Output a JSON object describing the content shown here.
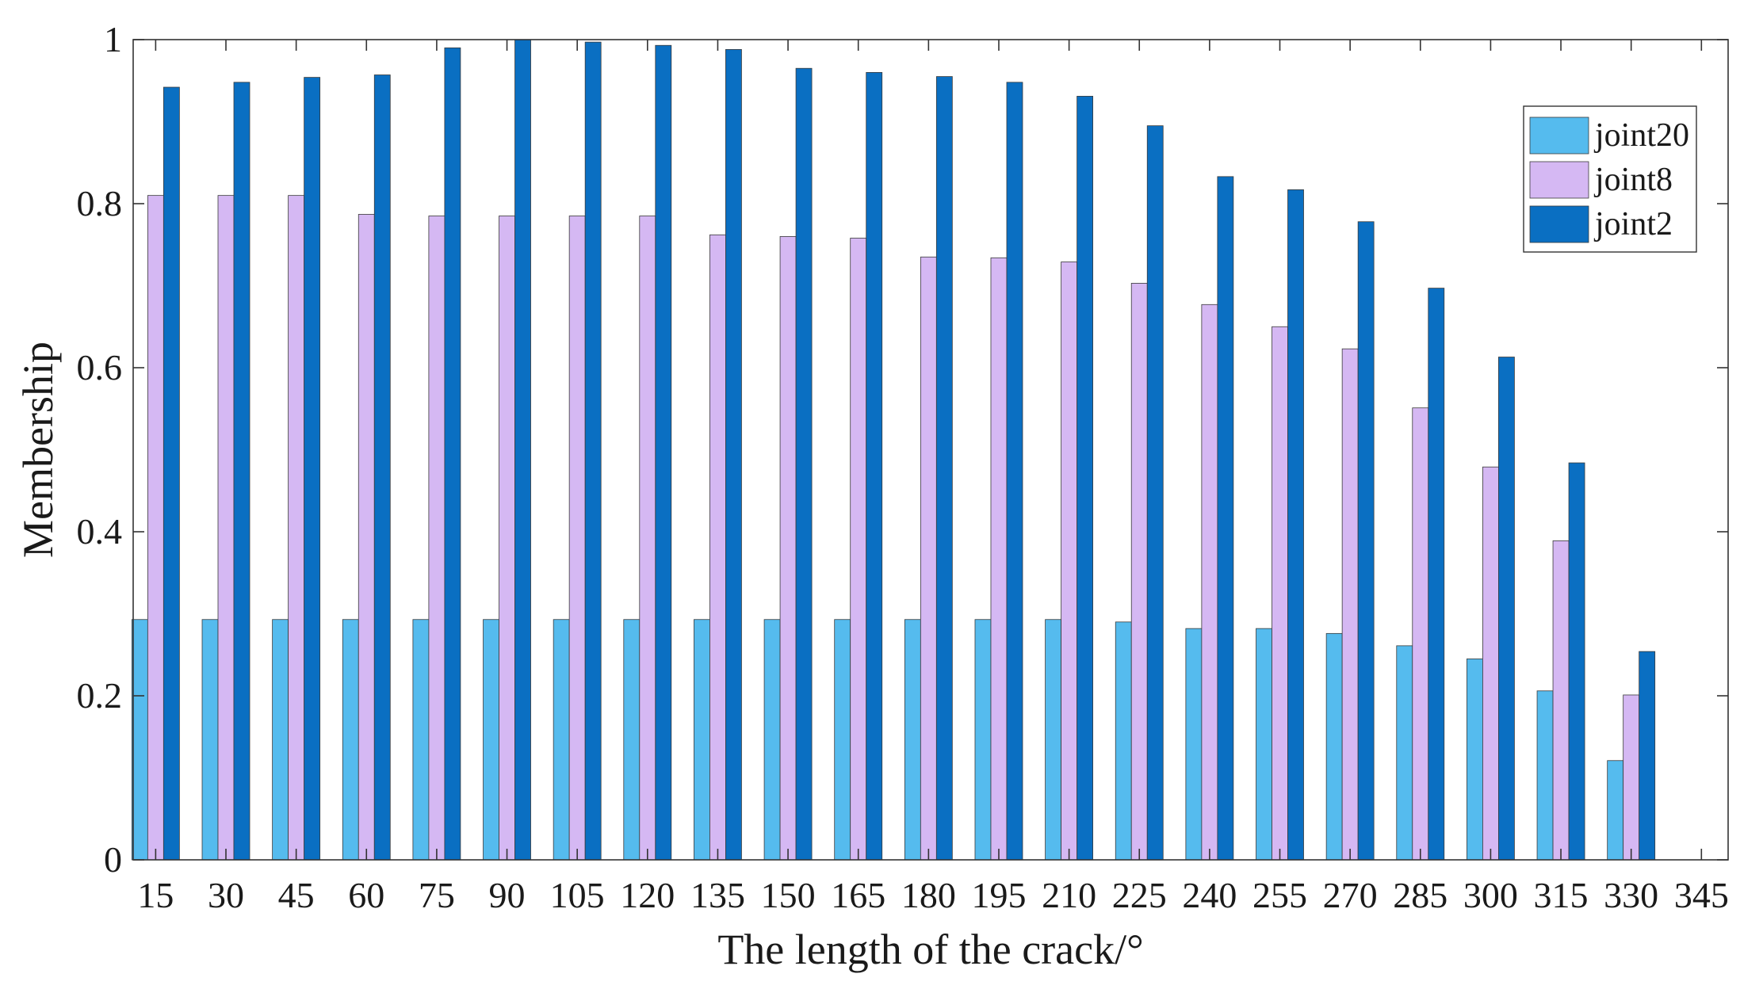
{
  "chart_data": {
    "type": "bar",
    "xlabel": "The length of the crack/°",
    "ylabel": "Membership",
    "ylim": [
      0,
      1
    ],
    "yticks": [
      "0",
      "0.2",
      "0.4",
      "0.6",
      "0.8",
      "1"
    ],
    "x_tick_labels": [
      "15",
      "30",
      "45",
      "60",
      "75",
      "90",
      "105",
      "120",
      "135",
      "150",
      "165",
      "180",
      "195",
      "210",
      "225",
      "240",
      "255",
      "270",
      "285",
      "300",
      "315",
      "330",
      "345"
    ],
    "categories": [
      "15",
      "30",
      "45",
      "60",
      "75",
      "90",
      "105",
      "120",
      "135",
      "150",
      "165",
      "180",
      "195",
      "210",
      "225",
      "240",
      "255",
      "270",
      "285",
      "300",
      "315",
      "330"
    ],
    "grid": false,
    "legend_position": "top-right",
    "series": [
      {
        "name": "joint20",
        "color": "#55bbee",
        "values": [
          0.293,
          0.293,
          0.293,
          0.293,
          0.293,
          0.293,
          0.293,
          0.293,
          0.293,
          0.293,
          0.293,
          0.293,
          0.293,
          0.293,
          0.29,
          0.282,
          0.282,
          0.276,
          0.261,
          0.245,
          0.206,
          0.121
        ]
      },
      {
        "name": "joint8",
        "color": "#d5b8f3",
        "values": [
          0.81,
          0.81,
          0.81,
          0.787,
          0.785,
          0.785,
          0.785,
          0.785,
          0.762,
          0.76,
          0.758,
          0.735,
          0.734,
          0.729,
          0.703,
          0.677,
          0.65,
          0.623,
          0.551,
          0.479,
          0.389,
          0.201
        ]
      },
      {
        "name": "joint2",
        "color": "#0a6fc2",
        "values": [
          0.942,
          0.948,
          0.954,
          0.957,
          0.99,
          1.0,
          0.997,
          0.993,
          0.988,
          0.965,
          0.96,
          0.955,
          0.948,
          0.931,
          0.895,
          0.833,
          0.817,
          0.778,
          0.697,
          0.613,
          0.484,
          0.254
        ]
      }
    ]
  }
}
